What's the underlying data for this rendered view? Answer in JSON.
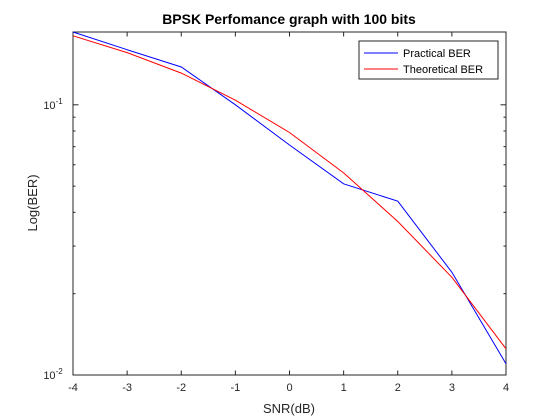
{
  "chart_data": {
    "type": "line",
    "title": "BPSK Perfomance graph with 100 bits",
    "xlabel": "SNR(dB)",
    "ylabel": "Log(BER)",
    "x": [
      -4,
      -3,
      -2,
      -1,
      0,
      1,
      2,
      3,
      4
    ],
    "xlim": [
      -4,
      4
    ],
    "ylim": [
      0.01,
      0.186
    ],
    "yscale": "log",
    "xticks": [
      -4,
      -3,
      -2,
      -1,
      0,
      1,
      2,
      3,
      4
    ],
    "xtick_labels": [
      "-4",
      "-3",
      "-2",
      "-1",
      "0",
      "1",
      "2",
      "3",
      "4"
    ],
    "yticks": [
      0.01,
      0.1
    ],
    "ytick_labels": [
      {
        "base": "10",
        "exp": "-2"
      },
      {
        "base": "10",
        "exp": "-1"
      }
    ],
    "grid": false,
    "legend_position": "top-right",
    "series": [
      {
        "name": "Practical BER",
        "color": "#0000ff",
        "values": [
          0.186,
          0.16,
          0.138,
          0.1,
          0.071,
          0.051,
          0.044,
          0.024,
          0.011
        ]
      },
      {
        "name": "Theoretical BER",
        "color": "#ff0000",
        "values": [
          0.18,
          0.156,
          0.131,
          0.104,
          0.079,
          0.056,
          0.037,
          0.023,
          0.0125
        ]
      }
    ]
  }
}
